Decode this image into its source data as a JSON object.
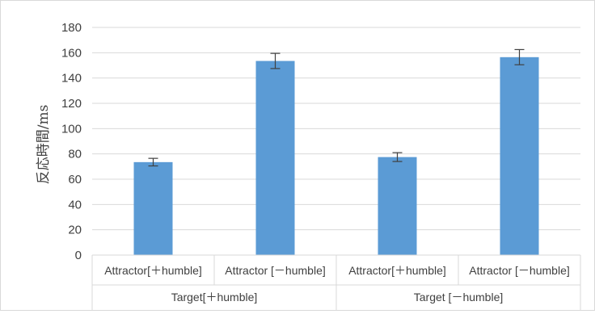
{
  "chart_data": {
    "type": "bar",
    "title": "",
    "xlabel": "",
    "ylabel": "反応時間/ms",
    "ylim": [
      0,
      180
    ],
    "yticks": [
      0,
      20,
      40,
      60,
      80,
      100,
      120,
      140,
      160,
      180
    ],
    "grid": true,
    "legend": "none",
    "bar_color": "#5b9bd5",
    "groups": [
      {
        "label": "Target[＋humble]",
        "categories": [
          "Attractor[＋humble]",
          "Attractor [－humble]"
        ]
      },
      {
        "label": "Target [－humble]",
        "categories": [
          "Attractor[＋humble]",
          "Attractor [－humble]"
        ]
      }
    ],
    "values": [
      73.5,
      153.5,
      77.5,
      156.5
    ],
    "error": [
      3.0,
      6.0,
      3.5,
      6.0
    ]
  }
}
